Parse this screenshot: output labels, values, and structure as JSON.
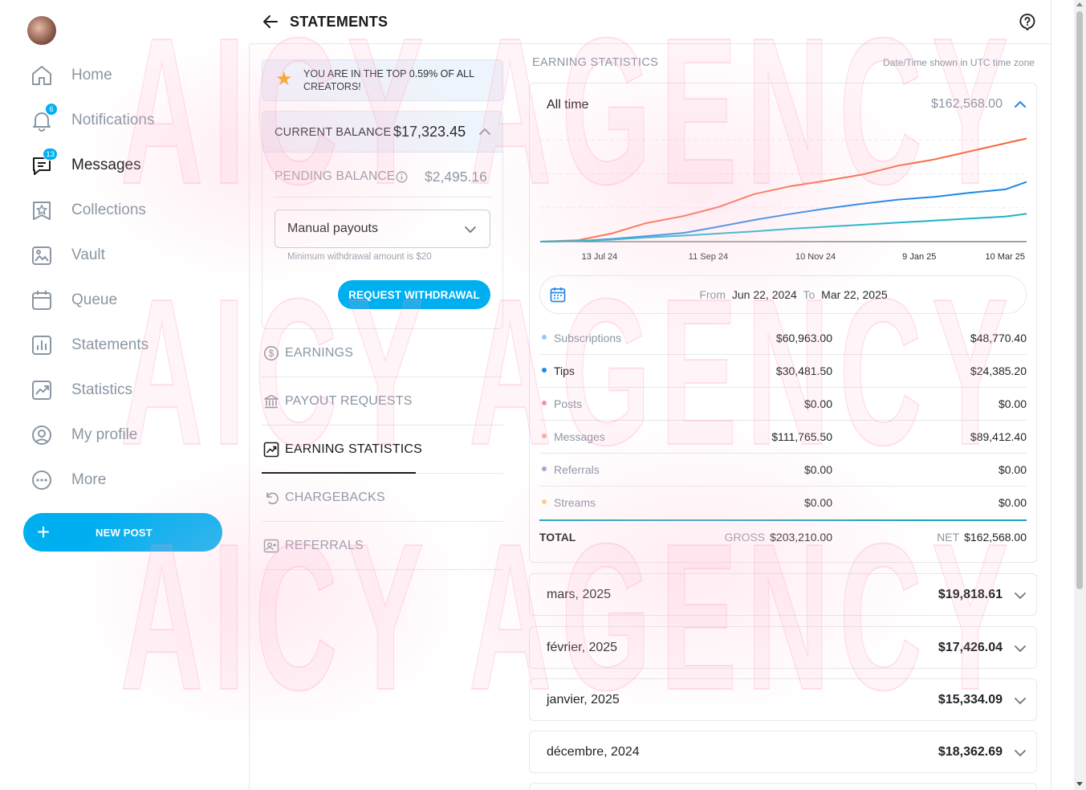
{
  "colors": {
    "accent": "#00aff0",
    "orange": "#f4683e",
    "blue": "#1e88e5",
    "teal": "#17b5c8",
    "muted": "#8a96a3"
  },
  "watermark": {
    "text": "AICY AGENCY"
  },
  "sidebar": {
    "items": [
      {
        "label": "Home",
        "icon": "home-icon",
        "badge": ""
      },
      {
        "label": "Notifications",
        "icon": "bell-icon",
        "badge": "6"
      },
      {
        "label": "Messages",
        "icon": "chat-icon",
        "badge": "13"
      },
      {
        "label": "Collections",
        "icon": "collections-icon",
        "badge": ""
      },
      {
        "label": "Vault",
        "icon": "vault-icon",
        "badge": ""
      },
      {
        "label": "Queue",
        "icon": "calendar-icon",
        "badge": ""
      },
      {
        "label": "Statements",
        "icon": "statements-icon",
        "badge": ""
      },
      {
        "label": "Statistics",
        "icon": "statistics-icon",
        "badge": ""
      },
      {
        "label": "My profile",
        "icon": "profile-icon",
        "badge": ""
      },
      {
        "label": "More",
        "icon": "more-icon",
        "badge": ""
      }
    ],
    "new_post_label": "NEW POST"
  },
  "header": {
    "title": "STATEMENTS"
  },
  "top_banner": {
    "text": "YOU ARE IN THE TOP 0.59% OF ALL CREATORS!"
  },
  "balance": {
    "current_label": "CURRENT BALANCE",
    "current_value": "$17,323.45",
    "pending_label": "PENDING BALANCE",
    "pending_value": "$2,495.16",
    "payout_mode": "Manual payouts",
    "min_note": "Minimum withdrawal amount is $20",
    "withdraw_label": "REQUEST WITHDRAWAL"
  },
  "menu": [
    {
      "label": "EARNINGS",
      "icon": "dollar-circle-icon"
    },
    {
      "label": "PAYOUT REQUESTS",
      "icon": "bank-icon"
    },
    {
      "label": "EARNING STATISTICS",
      "icon": "chart-up-icon"
    },
    {
      "label": "CHARGEBACKS",
      "icon": "undo-icon"
    },
    {
      "label": "REFERRALS",
      "icon": "referral-icon"
    }
  ],
  "stats": {
    "section_title": "EARNING STATISTICS",
    "tz_note": "Date/Time shown in UTC time zone",
    "period": "All time",
    "period_total": "$162,568.00",
    "date_from_label": "From",
    "date_from": "Jun 22, 2024",
    "date_to_label": "To",
    "date_to": "Mar 22, 2025",
    "rows": [
      {
        "name": "Subscriptions",
        "gross": "$60,963.00",
        "net": "$48,770.40",
        "dot": "#90caf9"
      },
      {
        "name": "Tips",
        "gross": "$30,481.50",
        "net": "$24,385.20",
        "dot": "#1e88e5"
      },
      {
        "name": "Posts",
        "gross": "$0.00",
        "net": "$0.00",
        "dot": "#f48fb1"
      },
      {
        "name": "Messages",
        "gross": "$111,765.50",
        "net": "$89,412.40",
        "dot": "#ffab91"
      },
      {
        "name": "Referrals",
        "gross": "$0.00",
        "net": "$0.00",
        "dot": "#b39ddb"
      },
      {
        "name": "Streams",
        "gross": "$0.00",
        "net": "$0.00",
        "dot": "#ffcc80"
      }
    ],
    "total": {
      "label": "TOTAL",
      "gross_label": "GROSS",
      "gross": "$203,210.00",
      "net_label": "NET",
      "net": "$162,568.00"
    }
  },
  "chart_data": {
    "type": "line",
    "x_ticks": [
      "13 Jul 24",
      "11 Sep 24",
      "10 Nov 24",
      "9 Jan 25",
      "10 Mar 25"
    ],
    "x": [
      "2024-06-22",
      "2024-07-13",
      "2024-08-01",
      "2024-08-20",
      "2024-09-11",
      "2024-09-30",
      "2024-10-20",
      "2024-11-10",
      "2024-11-30",
      "2024-12-20",
      "2025-01-09",
      "2025-01-29",
      "2025-02-18",
      "2025-03-10",
      "2025-03-22"
    ],
    "series": [
      {
        "color": "#f4683e",
        "values": [
          0,
          2,
          12,
          27,
          38,
          51,
          70,
          82,
          90,
          99,
          112,
          121,
          133,
          145,
          152
        ]
      },
      {
        "color": "#1e88e5",
        "values": [
          0,
          1,
          4,
          8,
          13,
          22,
          32,
          41,
          49,
          56,
          62,
          66,
          72,
          77,
          88
        ]
      },
      {
        "color": "#17b5c8",
        "values": [
          0,
          1,
          3,
          6,
          9,
          12,
          15,
          19,
          22,
          25,
          28,
          31,
          34,
          37,
          41
        ]
      }
    ],
    "grid": true
  },
  "months": [
    {
      "label": "mars, 2025",
      "amount": "$19,818.61"
    },
    {
      "label": "février, 2025",
      "amount": "$17,426.04"
    },
    {
      "label": "janvier, 2025",
      "amount": "$15,334.09"
    },
    {
      "label": "décembre, 2024",
      "amount": "$18,362.69"
    }
  ]
}
